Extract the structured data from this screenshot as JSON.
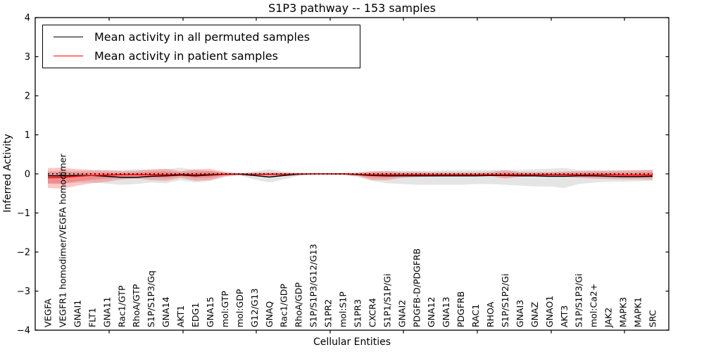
{
  "title": "S1P3 pathway -- 153 samples",
  "x_axis_label": "Cellular Entities",
  "y_axis_label": "Inferred Activity",
  "y_tick_labels": [
    "4",
    "3",
    "2",
    "1",
    "0",
    "−1",
    "−2",
    "−3",
    "−4"
  ],
  "legend": {
    "items": [
      {
        "label": "Mean activity in all permuted samples",
        "color": "#000000"
      },
      {
        "label": "Mean activity in patient samples",
        "color": "#ff0000"
      }
    ]
  },
  "chart_data": {
    "type": "line",
    "title": "S1P3 pathway -- 153 samples",
    "xlabel": "Cellular Entities",
    "ylabel": "Inferred Activity",
    "ylim": [
      -4,
      4
    ],
    "y_ticks": [
      4,
      3,
      2,
      1,
      0,
      -1,
      -2,
      -3,
      -4
    ],
    "grid": false,
    "zero_line": true,
    "legend_position": "upper left",
    "categories": [
      "VEGFA",
      "VEGFR1 homodimer/VEGFA homodimer",
      "GNAI1",
      "FLT1",
      "GNA11",
      "Rac1/GTP",
      "RhoA/GTP",
      "S1P/S1P3/Gq",
      "GNA14",
      "AKT1",
      "EDG1",
      "GNA15",
      "mol:GTP",
      "mol:GDP",
      "G12/G13",
      "GNAQ",
      "Rac1/GDP",
      "RhoA/GDP",
      "S1P/S1P3/G12/G13",
      "S1PR2",
      "mol:S1P",
      "S1PR3",
      "CXCR4",
      "S1P1/S1P/Gi",
      "GNAI2",
      "PDGFB-D/PDGFRB",
      "GNA12",
      "GNA13",
      "PDGFRB",
      "RAC1",
      "RHOA",
      "S1P/S1P2/Gi",
      "GNAI3",
      "GNAZ",
      "GNAO1",
      "AKT3",
      "S1P/S1P3/Gi",
      "mol:Ca2+",
      "JAK2",
      "MAPK3",
      "MAPK1",
      "SRC"
    ],
    "series": [
      {
        "name": "Mean activity in all permuted samples",
        "color": "#000000",
        "band_color": "#999999",
        "values": [
          -0.05,
          -0.05,
          -0.04,
          -0.04,
          -0.06,
          -0.09,
          -0.09,
          -0.06,
          -0.05,
          -0.03,
          -0.05,
          -0.03,
          -0.01,
          -0.01,
          -0.04,
          -0.08,
          -0.04,
          -0.01,
          0.0,
          0.0,
          0.0,
          -0.02,
          -0.04,
          -0.05,
          -0.05,
          -0.05,
          -0.05,
          -0.05,
          -0.05,
          -0.05,
          -0.04,
          -0.04,
          -0.05,
          -0.05,
          -0.06,
          -0.06,
          -0.05,
          -0.05,
          -0.06,
          -0.07,
          -0.07,
          -0.06
        ],
        "band_upper": [
          0.08,
          0.08,
          0.08,
          0.09,
          0.1,
          0.1,
          0.12,
          0.1,
          0.12,
          0.16,
          0.1,
          0.08,
          0.04,
          0.02,
          0.06,
          0.12,
          0.06,
          0.02,
          0.01,
          0.01,
          0.02,
          0.04,
          0.06,
          0.08,
          0.08,
          0.08,
          0.08,
          0.09,
          0.1,
          0.1,
          0.1,
          0.1,
          0.1,
          0.12,
          0.13,
          0.15,
          0.1,
          0.09,
          0.09,
          0.09,
          0.09,
          0.09
        ],
        "band_lower": [
          -0.25,
          -0.25,
          -0.22,
          -0.22,
          -0.25,
          -0.28,
          -0.26,
          -0.22,
          -0.24,
          -0.16,
          -0.22,
          -0.18,
          -0.08,
          -0.04,
          -0.14,
          -0.22,
          -0.14,
          -0.05,
          -0.02,
          -0.02,
          -0.03,
          -0.08,
          -0.18,
          -0.24,
          -0.26,
          -0.28,
          -0.28,
          -0.28,
          -0.28,
          -0.26,
          -0.26,
          -0.28,
          -0.3,
          -0.32,
          -0.32,
          -0.36,
          -0.26,
          -0.22,
          -0.2,
          -0.2,
          -0.19,
          -0.18
        ]
      },
      {
        "name": "Mean activity in patient samples",
        "color": "#ff0000",
        "band_color": "#ff0000",
        "values": [
          -0.1,
          -0.09,
          -0.06,
          -0.04,
          -0.03,
          -0.02,
          -0.02,
          -0.02,
          -0.02,
          -0.01,
          -0.02,
          -0.01,
          -0.01,
          0.0,
          -0.01,
          -0.01,
          -0.01,
          0.0,
          0.0,
          0.0,
          0.0,
          -0.01,
          -0.02,
          -0.02,
          -0.02,
          -0.02,
          -0.02,
          -0.02,
          -0.02,
          -0.02,
          -0.02,
          -0.02,
          -0.02,
          -0.02,
          -0.02,
          -0.02,
          -0.02,
          -0.02,
          -0.02,
          -0.03,
          -0.03,
          -0.03
        ],
        "band_upper": [
          0.15,
          0.16,
          0.12,
          0.1,
          0.09,
          0.07,
          0.08,
          0.12,
          0.13,
          0.07,
          0.12,
          0.13,
          0.05,
          0.01,
          0.03,
          0.04,
          0.03,
          0.02,
          0.01,
          0.01,
          0.02,
          0.03,
          0.07,
          0.07,
          0.05,
          0.05,
          0.04,
          0.04,
          0.04,
          0.04,
          0.05,
          0.1,
          0.05,
          0.05,
          0.05,
          0.06,
          0.07,
          0.08,
          0.08,
          0.09,
          0.1,
          0.11
        ],
        "band_lower": [
          -0.36,
          -0.38,
          -0.3,
          -0.24,
          -0.2,
          -0.14,
          -0.12,
          -0.16,
          -0.18,
          -0.1,
          -0.18,
          -0.16,
          -0.06,
          -0.02,
          -0.05,
          -0.06,
          -0.05,
          -0.03,
          -0.01,
          -0.01,
          -0.02,
          -0.05,
          -0.16,
          -0.16,
          -0.1,
          -0.08,
          -0.07,
          -0.06,
          -0.06,
          -0.06,
          -0.06,
          -0.12,
          -0.07,
          -0.07,
          -0.08,
          -0.08,
          -0.1,
          -0.12,
          -0.13,
          -0.14,
          -0.14,
          -0.15
        ]
      }
    ]
  }
}
